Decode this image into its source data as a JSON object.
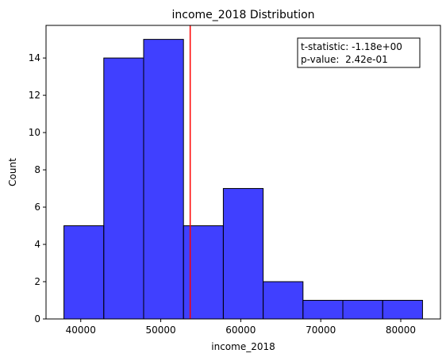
{
  "chart_data": {
    "type": "bar",
    "title": "income_2018 Distribution",
    "xlabel": "income_2018",
    "ylabel": "Count",
    "bins": [
      {
        "x0": 37900,
        "x1": 42880,
        "count": 5
      },
      {
        "x0": 42880,
        "x1": 47860,
        "count": 14
      },
      {
        "x0": 47860,
        "x1": 52840,
        "count": 15
      },
      {
        "x0": 52840,
        "x1": 57820,
        "count": 5
      },
      {
        "x0": 57820,
        "x1": 62800,
        "count": 7
      },
      {
        "x0": 62800,
        "x1": 67780,
        "count": 2
      },
      {
        "x0": 67780,
        "x1": 72760,
        "count": 1
      },
      {
        "x0": 72760,
        "x1": 77740,
        "count": 1
      },
      {
        "x0": 77740,
        "x1": 82720,
        "count": 1
      }
    ],
    "xlim": [
      35660,
      84960
    ],
    "ylim": [
      0,
      15.75
    ],
    "xticks": [
      40000,
      50000,
      60000,
      70000,
      80000
    ],
    "xtick_labels": [
      "40000",
      "50000",
      "60000",
      "70000",
      "80000"
    ],
    "yticks": [
      0,
      2,
      4,
      6,
      8,
      10,
      12,
      14
    ],
    "ytick_labels": [
      "0",
      "2",
      "4",
      "6",
      "8",
      "10",
      "12",
      "14"
    ],
    "vline": {
      "x": 53680,
      "color": "#ff0000"
    },
    "bar_color": "#0000ff",
    "annotation": {
      "lines": [
        "t-statistic: -1.18e+00",
        "p-value:  2.42e-01"
      ]
    }
  }
}
